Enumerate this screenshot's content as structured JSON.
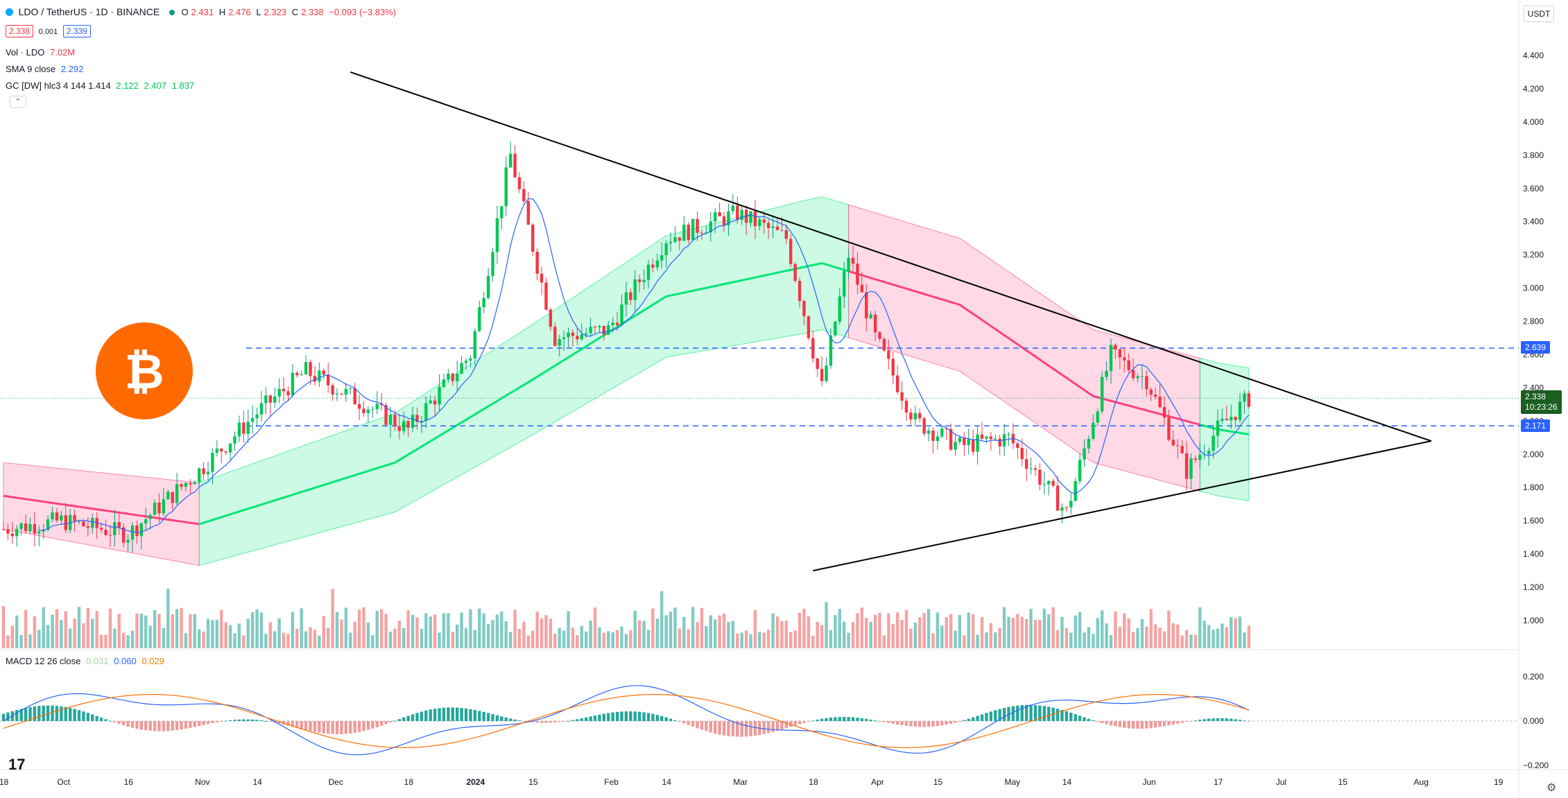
{
  "header": {
    "symbol_title": "LDO / TetherUS · 1D · BINANCE",
    "ohlc": {
      "o_label": "O",
      "o": "2.431",
      "h_label": "H",
      "h": "2.476",
      "l_label": "L",
      "l": "2.323",
      "c_label": "C",
      "c": "2.338",
      "change": "−0.093 (−3.83%)"
    },
    "bid": "2.338",
    "spread": "0.001",
    "ask": "2.339",
    "currency": "USDT"
  },
  "indicators": {
    "vol": {
      "label": "Vol · LDO",
      "value": "7.02M"
    },
    "sma": {
      "label": "SMA 9 close",
      "value": "2.292"
    },
    "gc": {
      "label": "GC [DW] hlc3 4 144 1.414",
      "v1": "2.122",
      "v2": "2.407",
      "v3": "1.837"
    },
    "macd": {
      "label": "MACD 12 26 close",
      "v1": "0.031",
      "v2": "0.060",
      "v3": "0.029"
    }
  },
  "price_axis": {
    "ticks": [
      "4.400",
      "4.200",
      "4.000",
      "3.800",
      "3.600",
      "3.400",
      "3.200",
      "3.000",
      "2.800",
      "2.600",
      "2.400",
      "2.200",
      "2.000",
      "1.800",
      "1.600",
      "1.400",
      "1.200",
      "1.000"
    ],
    "resistance_tag": "2.639",
    "current_price_tag": "2.338",
    "countdown": "10:23:26",
    "support_tag": "2.171"
  },
  "macd_axis": {
    "ticks": [
      "0.200",
      "0.000",
      "−0.200"
    ]
  },
  "time_axis": {
    "ticks": [
      "18",
      "Oct",
      "16",
      "Nov",
      "14",
      "Dec",
      "18",
      "2024",
      "15",
      "Feb",
      "14",
      "Mar",
      "18",
      "Apr",
      "15",
      "May",
      "14",
      "Jun",
      "17",
      "Jul",
      "15",
      "Aug",
      "19"
    ]
  },
  "colors": {
    "up": "#089981",
    "down": "#f23645",
    "bull_band": "#00e676",
    "bear_band": "#ff4081",
    "sma": "#2962ff",
    "hline": "#2962ff",
    "accent": "#ff6a00"
  },
  "chart_data": {
    "type": "candlestick",
    "symbol": "LDO/USDT",
    "interval": "1D",
    "price_range": [
      1.0,
      4.4
    ],
    "resistance_level": 2.639,
    "support_level": 2.171,
    "close_path": [
      {
        "t": "2023-09-18",
        "c": 1.55
      },
      {
        "t": "2023-10-01",
        "c": 1.6
      },
      {
        "t": "2023-10-16",
        "c": 1.52
      },
      {
        "t": "2023-11-01",
        "c": 1.9
      },
      {
        "t": "2023-11-14",
        "c": 2.25
      },
      {
        "t": "2023-11-25",
        "c": 2.5
      },
      {
        "t": "2023-12-05",
        "c": 2.35
      },
      {
        "t": "2023-12-18",
        "c": 2.15
      },
      {
        "t": "2024-01-01",
        "c": 2.6
      },
      {
        "t": "2024-01-10",
        "c": 3.8
      },
      {
        "t": "2024-01-20",
        "c": 2.7
      },
      {
        "t": "2024-02-01",
        "c": 2.75
      },
      {
        "t": "2024-02-14",
        "c": 3.3
      },
      {
        "t": "2024-03-01",
        "c": 3.45
      },
      {
        "t": "2024-03-12",
        "c": 3.3
      },
      {
        "t": "2024-03-20",
        "c": 2.4
      },
      {
        "t": "2024-03-26",
        "c": 3.2
      },
      {
        "t": "2024-04-01",
        "c": 2.7
      },
      {
        "t": "2024-04-10",
        "c": 2.2
      },
      {
        "t": "2024-04-20",
        "c": 2.05
      },
      {
        "t": "2024-05-01",
        "c": 2.1
      },
      {
        "t": "2024-05-14",
        "c": 1.65
      },
      {
        "t": "2024-05-24",
        "c": 2.6
      },
      {
        "t": "2024-06-01",
        "c": 2.45
      },
      {
        "t": "2024-06-10",
        "c": 1.9
      },
      {
        "t": "2024-06-17",
        "c": 2.15
      },
      {
        "t": "2024-06-24",
        "c": 2.338
      }
    ],
    "triangle_upper": [
      {
        "t": "2023-12-05",
        "p": 4.3
      },
      {
        "t": "2024-08-04",
        "p": 2.08
      }
    ],
    "triangle_lower": [
      {
        "t": "2024-03-18",
        "p": 1.3
      },
      {
        "t": "2024-08-04",
        "p": 2.08
      }
    ],
    "macd_range": [
      -0.25,
      0.25
    ]
  }
}
